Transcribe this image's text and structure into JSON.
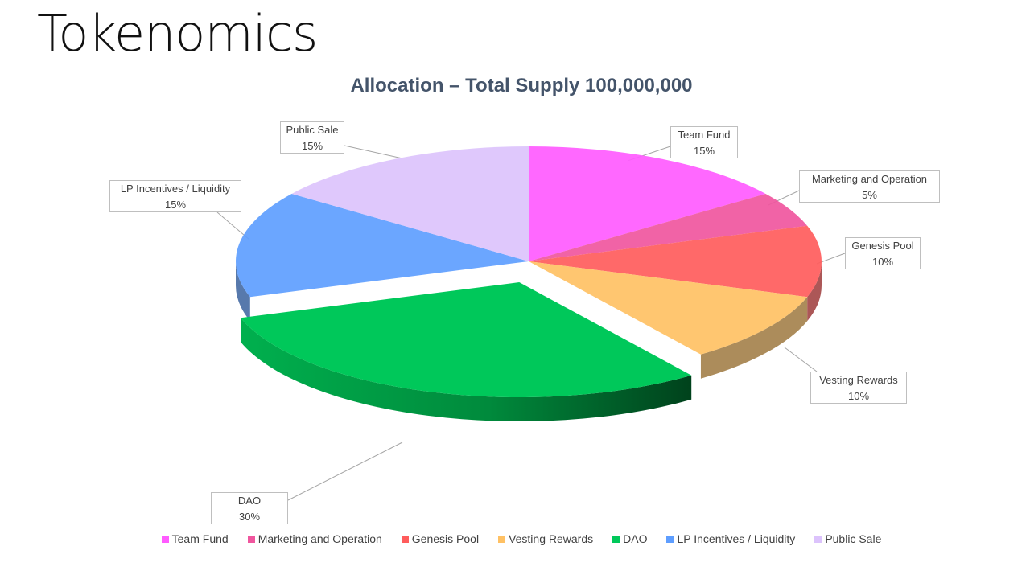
{
  "page": {
    "title": "Tokenomics"
  },
  "chart_data": {
    "type": "pie",
    "title": "Allocation – Total Supply 100,000,000",
    "slices": [
      {
        "name": "Team Fund",
        "value": 15,
        "label": "15%",
        "color": "#ff5bff"
      },
      {
        "name": "Marketing and Operation",
        "value": 5,
        "label": "5%",
        "color": "#f0569e"
      },
      {
        "name": "Genesis Pool",
        "value": 10,
        "label": "10%",
        "color": "#ff5c5c"
      },
      {
        "name": "Vesting Rewards",
        "value": 10,
        "label": "10%",
        "color": "#ffc164"
      },
      {
        "name": "DAO",
        "value": 30,
        "label": "30%",
        "color": "#00c85a"
      },
      {
        "name": "LP Incentives / Liquidity",
        "value": 15,
        "label": "15%",
        "color": "#5e9eff"
      },
      {
        "name": "Public Sale",
        "value": 15,
        "label": "15%",
        "color": "#dcc3fc"
      }
    ],
    "exploded": "DAO",
    "legend": "bottom",
    "style": "3d"
  }
}
